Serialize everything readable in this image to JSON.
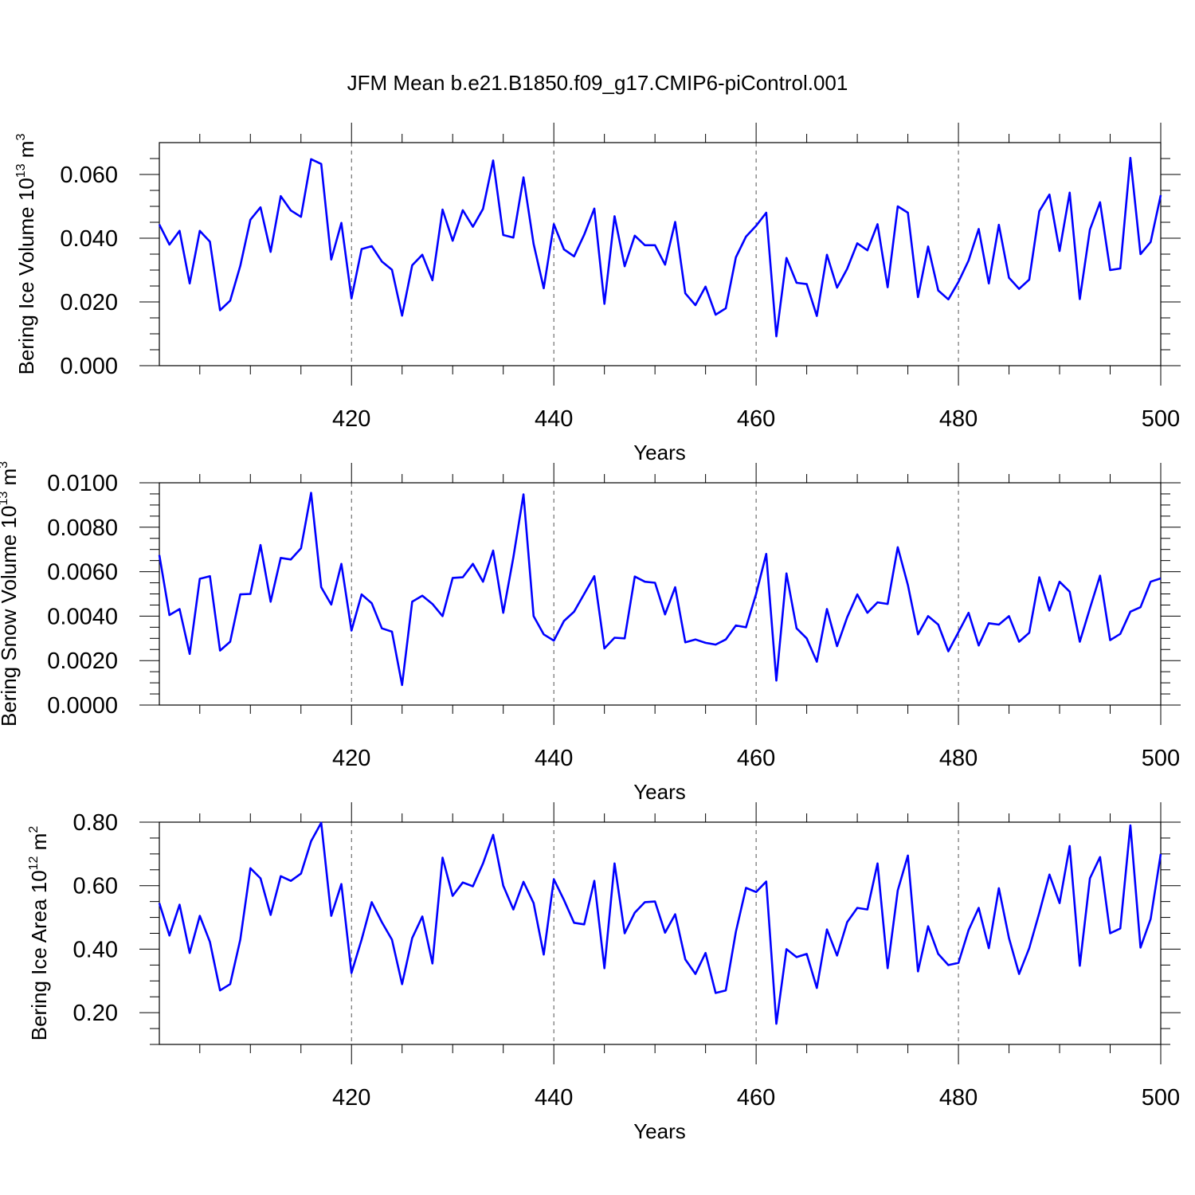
{
  "title": "JFM Mean b.e21.B1850.f09_g17.CMIP6-piControl.001",
  "chart_data": [
    {
      "type": "line",
      "ylabel": {
        "prefix": "Bering Ice Volume 10",
        "exp": "13",
        "unit": " m",
        "unit_exp": "3"
      },
      "xlabel": "Years",
      "xlim": [
        401,
        500
      ],
      "ylim": [
        0.0,
        0.07
      ],
      "yticks": [
        0.0,
        0.02,
        0.04,
        0.06
      ],
      "ytick_labels": [
        "0.000",
        "0.020",
        "0.040",
        "0.060"
      ],
      "yminor": [
        0.005,
        0.01,
        0.015,
        0.025,
        0.03,
        0.035,
        0.045,
        0.05,
        0.055,
        0.065
      ],
      "xticks": [
        420,
        440,
        460,
        480,
        500
      ],
      "xtick_labels": [
        "420",
        "440",
        "460",
        "480",
        "500"
      ],
      "xgrid": [
        420,
        440,
        460,
        480
      ],
      "color": "#0000ff",
      "x_start": 401,
      "values": [
        0.0443,
        0.038,
        0.0423,
        0.0258,
        0.0423,
        0.0389,
        0.0174,
        0.0204,
        0.0313,
        0.0458,
        0.0497,
        0.0357,
        0.0532,
        0.0487,
        0.0467,
        0.0648,
        0.0633,
        0.0333,
        0.0448,
        0.0211,
        0.0366,
        0.0375,
        0.0327,
        0.0301,
        0.0157,
        0.0315,
        0.0348,
        0.0268,
        0.049,
        0.0392,
        0.0488,
        0.0436,
        0.0492,
        0.0644,
        0.041,
        0.0402,
        0.0591,
        0.0382,
        0.0243,
        0.0444,
        0.0365,
        0.0343,
        0.0411,
        0.0493,
        0.0194,
        0.0469,
        0.0312,
        0.0408,
        0.0378,
        0.0378,
        0.0317,
        0.0451,
        0.0227,
        0.019,
        0.0248,
        0.016,
        0.018,
        0.034,
        0.0405,
        0.0439,
        0.048,
        0.0092,
        0.0338,
        0.026,
        0.0256,
        0.0156,
        0.0348,
        0.0245,
        0.0304,
        0.0384,
        0.0362,
        0.0444,
        0.0246,
        0.05,
        0.048,
        0.0215,
        0.0374,
        0.0236,
        0.0208,
        0.0263,
        0.033,
        0.0429,
        0.0258,
        0.0442,
        0.0276,
        0.0241,
        0.027,
        0.0485,
        0.0537,
        0.036,
        0.0543,
        0.0209,
        0.0427,
        0.0513,
        0.03,
        0.0305,
        0.0652,
        0.035,
        0.0388,
        0.0535
      ]
    },
    {
      "type": "line",
      "ylabel": {
        "prefix": "Bering Snow Volume 10",
        "exp": "13",
        "unit": " m",
        "unit_exp": "3"
      },
      "xlabel": "Years",
      "xlim": [
        401,
        500
      ],
      "ylim": [
        0.0,
        0.01
      ],
      "yticks": [
        0.0,
        0.002,
        0.004,
        0.006,
        0.008,
        0.01
      ],
      "ytick_labels": [
        "0.0000",
        "0.0020",
        "0.0040",
        "0.0060",
        "0.0080",
        "0.0100"
      ],
      "yminor": [
        0.0005,
        0.001,
        0.0015,
        0.0025,
        0.003,
        0.0035,
        0.0045,
        0.005,
        0.0055,
        0.0065,
        0.007,
        0.0075,
        0.0085,
        0.009,
        0.0095
      ],
      "xticks": [
        420,
        440,
        460,
        480,
        500
      ],
      "xtick_labels": [
        "420",
        "440",
        "460",
        "480",
        "500"
      ],
      "xgrid": [
        420,
        440,
        460,
        480
      ],
      "color": "#0000ff",
      "x_start": 401,
      "values": [
        0.00675,
        0.00405,
        0.00432,
        0.0023,
        0.00568,
        0.0058,
        0.00245,
        0.00285,
        0.00498,
        0.005,
        0.0072,
        0.00465,
        0.00662,
        0.00655,
        0.00705,
        0.00955,
        0.0053,
        0.00452,
        0.00635,
        0.00335,
        0.00498,
        0.00458,
        0.00345,
        0.0033,
        0.0009,
        0.00465,
        0.00492,
        0.00455,
        0.004,
        0.00572,
        0.00575,
        0.00635,
        0.00555,
        0.00695,
        0.00415,
        0.00665,
        0.00948,
        0.004,
        0.00318,
        0.0029,
        0.00378,
        0.0042,
        0.005,
        0.0058,
        0.00255,
        0.00303,
        0.003,
        0.00578,
        0.00555,
        0.0055,
        0.00408,
        0.0053,
        0.00282,
        0.00295,
        0.0028,
        0.00272,
        0.00295,
        0.00358,
        0.0035,
        0.005,
        0.0068,
        0.0011,
        0.00592,
        0.00345,
        0.003,
        0.00195,
        0.00432,
        0.00265,
        0.00395,
        0.00498,
        0.00415,
        0.00462,
        0.00455,
        0.0071,
        0.0054,
        0.00318,
        0.004,
        0.00362,
        0.00242,
        0.00328,
        0.00415,
        0.00268,
        0.00368,
        0.00362,
        0.004,
        0.00285,
        0.00325,
        0.00575,
        0.00425,
        0.00555,
        0.0051,
        0.00285,
        0.00435,
        0.00582,
        0.00292,
        0.0032,
        0.0042,
        0.0044,
        0.00555,
        0.0057
      ]
    },
    {
      "type": "line",
      "ylabel": {
        "prefix": "Bering Ice Area 10",
        "exp": "12",
        "unit": " m",
        "unit_exp": "2"
      },
      "xlabel": "Years",
      "xlim": [
        401,
        500
      ],
      "ylim": [
        0.1,
        0.8
      ],
      "yticks": [
        0.2,
        0.4,
        0.6,
        0.8
      ],
      "ytick_labels": [
        "0.20",
        "0.40",
        "0.60",
        "0.80"
      ],
      "yminor": [
        0.1,
        0.15,
        0.25,
        0.3,
        0.35,
        0.45,
        0.5,
        0.55,
        0.65,
        0.7,
        0.75
      ],
      "xticks": [
        420,
        440,
        460,
        480,
        500
      ],
      "xtick_labels": [
        "420",
        "440",
        "460",
        "480",
        "500"
      ],
      "xgrid": [
        420,
        440,
        460,
        480
      ],
      "color": "#0000ff",
      "x_start": 401,
      "values": [
        0.545,
        0.443,
        0.54,
        0.388,
        0.505,
        0.423,
        0.27,
        0.29,
        0.43,
        0.655,
        0.623,
        0.508,
        0.63,
        0.615,
        0.638,
        0.74,
        0.798,
        0.505,
        0.605,
        0.325,
        0.43,
        0.548,
        0.485,
        0.43,
        0.29,
        0.435,
        0.503,
        0.355,
        0.688,
        0.568,
        0.61,
        0.598,
        0.67,
        0.76,
        0.6,
        0.525,
        0.612,
        0.545,
        0.383,
        0.62,
        0.555,
        0.483,
        0.478,
        0.615,
        0.34,
        0.67,
        0.45,
        0.515,
        0.548,
        0.55,
        0.452,
        0.51,
        0.368,
        0.322,
        0.388,
        0.262,
        0.27,
        0.455,
        0.593,
        0.58,
        0.613,
        0.165,
        0.4,
        0.375,
        0.385,
        0.278,
        0.462,
        0.38,
        0.485,
        0.53,
        0.525,
        0.67,
        0.34,
        0.585,
        0.695,
        0.33,
        0.472,
        0.385,
        0.35,
        0.357,
        0.46,
        0.53,
        0.403,
        0.592,
        0.435,
        0.322,
        0.403,
        0.515,
        0.635,
        0.545,
        0.725,
        0.348,
        0.623,
        0.69,
        0.45,
        0.465,
        0.79,
        0.405,
        0.495,
        0.7
      ]
    }
  ]
}
